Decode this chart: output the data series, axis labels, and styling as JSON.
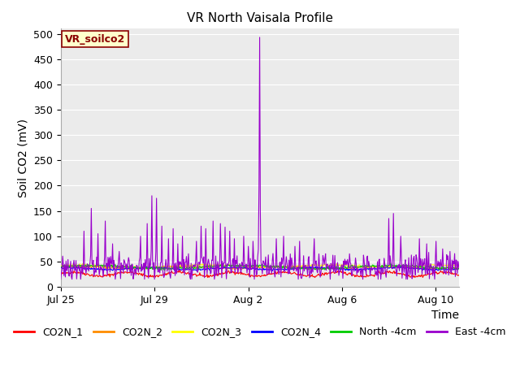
{
  "title": "VR North Vaisala Profile",
  "ylabel": "Soil CO2 (mV)",
  "xlabel": "Time",
  "annotation_label": "VR_soilco2",
  "annotation_color": "#8B0000",
  "annotation_bg": "#FFFFCC",
  "ylim": [
    0,
    510
  ],
  "yticks": [
    0,
    50,
    100,
    150,
    200,
    250,
    300,
    350,
    400,
    450,
    500
  ],
  "x_tick_labels": [
    "Jul 25",
    "Jul 29",
    "Aug 2",
    "Aug 6",
    "Aug 10"
  ],
  "x_tick_positions": [
    0,
    4,
    8,
    12,
    16
  ],
  "x_lim": [
    0,
    17
  ],
  "plot_bg": "#EBEBEB",
  "legend": [
    {
      "label": "CO2N_1",
      "color": "#FF0000"
    },
    {
      "label": "CO2N_2",
      "color": "#FF8C00"
    },
    {
      "label": "CO2N_3",
      "color": "#FFFF00"
    },
    {
      "label": "CO2N_4",
      "color": "#0000FF"
    },
    {
      "label": "North -4cm",
      "color": "#00CC00"
    },
    {
      "label": "East -4cm",
      "color": "#9900CC"
    }
  ],
  "series_colors": {
    "CO2N_1": "#FF0000",
    "CO2N_2": "#FF8C00",
    "CO2N_3": "#FFFF00",
    "CO2N_4": "#0000FF",
    "North_4cm": "#00CC00",
    "East_4cm": "#9900CC"
  },
  "n_points": 600,
  "title_fontsize": 11,
  "label_fontsize": 10,
  "tick_fontsize": 9,
  "annot_fontsize": 9,
  "legend_fontsize": 9,
  "linewidth": 0.8
}
